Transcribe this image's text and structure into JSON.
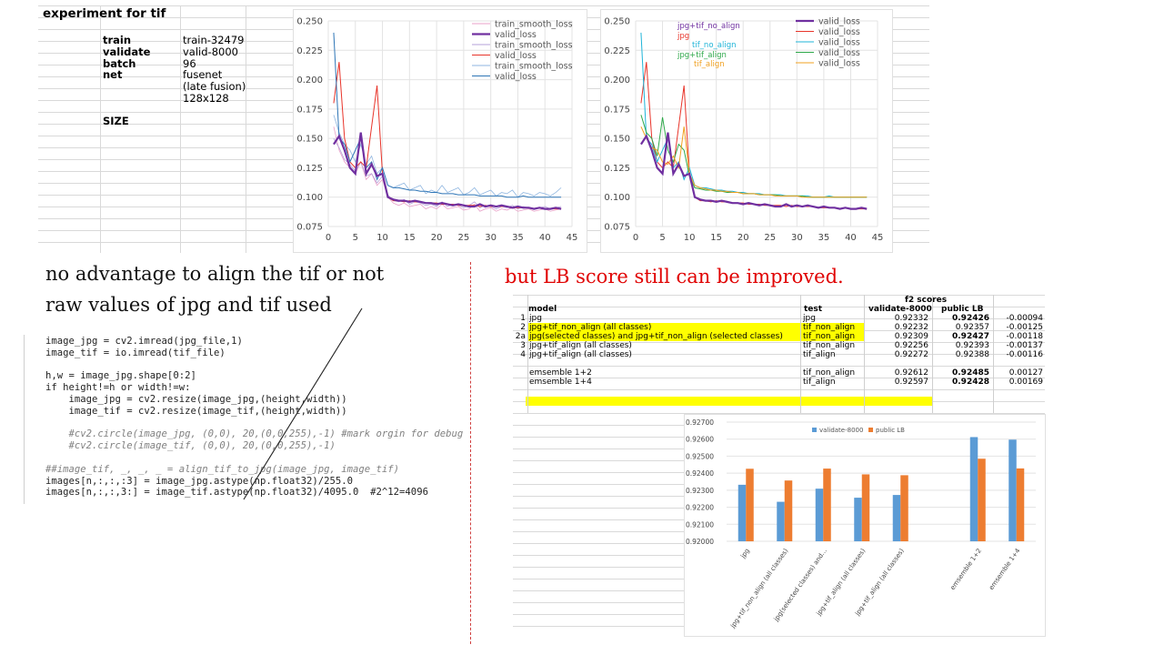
{
  "experiment": {
    "title": "experiment for tif",
    "rows": [
      {
        "label": "train",
        "value": "train-32479"
      },
      {
        "label": "validate",
        "value": "valid-8000"
      },
      {
        "label": "batch",
        "value": "96"
      },
      {
        "label": "net",
        "value": "fusenet"
      },
      {
        "label": "",
        "value": "(late fusion)"
      },
      {
        "label": "",
        "value": "128x128"
      }
    ],
    "size_label": "SIZE"
  },
  "headings": {
    "left1": "no advantage to align the tif or not",
    "left2": "raw values of jpg and tif used",
    "right": "but LB score still can be improved."
  },
  "code": [
    "image_jpg = cv2.imread(jpg_file,1)",
    "image_tif = io.imread(tif_file)",
    "",
    "h,w = image_jpg.shape[0:2]",
    "if height!=h or width!=w:",
    "    image_jpg = cv2.resize(image_jpg,(height,width))",
    "    image_tif = cv2.resize(image_tif,(height,width))",
    "",
    "    #cv2.circle(image_jpg, (0,0), 20,(0,0,255),-1) #mark orgin for debug",
    "    #cv2.circle(image_tif, (0,0), 20,(0,0,255),-1)",
    "",
    "##image_tif, _, _, _ = align_tif_to_jpg(image_jpg, image_tif)",
    "images[n,:,:,:3] = image_jpg.astype(np.float32)/255.0",
    "images[n,:,:,3:] = image_tif.astype(np.float32)/4095.0  #2^12=4096"
  ],
  "scores": {
    "group_header": "f2 scores",
    "columns": [
      "model",
      "test",
      "validate-8000",
      "public LB"
    ],
    "rows": [
      {
        "id": "1",
        "model": "jpg",
        "test": "jpg",
        "validate": "0.92332",
        "lb": "0.92426",
        "diff": "-0.00094",
        "highlight": false,
        "lb_bold": true
      },
      {
        "id": "2",
        "model": "jpg+tif_non_align (all classes)",
        "test": "tif_non_align",
        "validate": "0.92232",
        "lb": "0.92357",
        "diff": "-0.00125",
        "highlight": true,
        "lb_bold": false
      },
      {
        "id": "2a",
        "model": "jpg(selected classes) and jpg+tif_non_align (selected classes)",
        "test": "tif_non_align",
        "validate": "0.92309",
        "lb": "0.92427",
        "diff": "-0.00118",
        "highlight": true,
        "lb_bold": true
      },
      {
        "id": "3",
        "model": "jpg+tif_align (all classes)",
        "test": "tif_non_align",
        "validate": "0.92256",
        "lb": "0.92393",
        "diff": "-0.00137",
        "highlight": false,
        "lb_bold": false
      },
      {
        "id": "4",
        "model": "jpg+tif_align (all classes)",
        "test": "tif_align",
        "validate": "0.92272",
        "lb": "0.92388",
        "diff": "-0.00116",
        "highlight": false,
        "lb_bold": false
      },
      {
        "id": "",
        "model": "",
        "test": "",
        "validate": "",
        "lb": "",
        "diff": "",
        "highlight": false,
        "lb_bold": false
      },
      {
        "id": "",
        "model": "emsemble 1+2",
        "test": "tif_non_align",
        "validate": "0.92612",
        "lb": "0.92485",
        "diff": "0.00127",
        "highlight": false,
        "lb_bold": true
      },
      {
        "id": "",
        "model": "emsemble 1+4",
        "test": "tif_align",
        "validate": "0.92597",
        "lb": "0.92428",
        "diff": "0.00169",
        "highlight": false,
        "lb_bold": true
      }
    ]
  },
  "colors": {
    "purple": "#7030a0",
    "red": "#e8342a",
    "blue": "#2e75b6",
    "pink": "#e8a0c8",
    "lavender": "#b4a0d8",
    "lightblue": "#8fb6e0",
    "cyan": "#1fb4d8",
    "green": "#2ea84a",
    "orange": "#f0a020",
    "barblue": "#5b9bd5",
    "barorange": "#ed7d31"
  },
  "chart_data": [
    {
      "type": "line",
      "title": "",
      "xlim": [
        0,
        45
      ],
      "ylim": [
        0.075,
        0.25
      ],
      "xticks": [
        "0",
        "5",
        "10",
        "15",
        "20",
        "25",
        "30",
        "35",
        "40",
        "45"
      ],
      "yticks": [
        "0.075",
        "0.100",
        "0.125",
        "0.150",
        "0.175",
        "0.200",
        "0.225",
        "0.250"
      ],
      "legend": [
        "train_smooth_loss",
        "valid_loss",
        "train_smooth_loss",
        "valid_loss",
        "train_smooth_loss",
        "valid_loss"
      ],
      "legend_position": "top-right",
      "x": [
        1,
        2,
        3,
        4,
        5,
        6,
        7,
        8,
        9,
        10,
        11,
        12,
        13,
        14,
        15,
        16,
        17,
        18,
        19,
        20,
        21,
        22,
        23,
        24,
        25,
        26,
        27,
        28,
        29,
        30,
        31,
        32,
        33,
        34,
        35,
        36,
        37,
        38,
        39,
        40,
        41,
        42,
        43
      ],
      "series": [
        {
          "name": "valid_loss",
          "color": "purple",
          "width": 2.2,
          "values": [
            0.145,
            0.152,
            0.14,
            0.125,
            0.12,
            0.155,
            0.12,
            0.128,
            0.118,
            0.12,
            0.1,
            0.098,
            0.097,
            0.097,
            0.096,
            0.097,
            0.096,
            0.095,
            0.095,
            0.094,
            0.095,
            0.094,
            0.093,
            0.094,
            0.093,
            0.092,
            0.092,
            0.094,
            0.092,
            0.093,
            0.092,
            0.093,
            0.092,
            0.091,
            0.092,
            0.091,
            0.091,
            0.09,
            0.091,
            0.09,
            0.09,
            0.091,
            0.09
          ]
        },
        {
          "name": "valid_loss",
          "color": "red",
          "width": 1,
          "values": [
            0.18,
            0.215,
            0.15,
            0.13,
            0.125,
            0.13,
            0.125,
            0.16,
            0.195,
            0.12,
            0.1,
            0.097,
            0.097,
            0.096,
            0.097,
            0.096,
            0.096,
            0.095,
            0.095,
            0.095,
            0.094,
            0.094,
            0.094,
            0.093,
            0.093,
            0.093,
            0.093,
            0.092,
            0.093,
            0.092,
            0.092,
            0.092,
            0.092,
            0.091,
            0.091,
            0.091,
            0.091,
            0.09,
            0.091,
            0.09,
            0.09,
            0.09,
            0.09
          ]
        },
        {
          "name": "valid_loss",
          "color": "blue",
          "width": 1,
          "values": [
            0.24,
            0.15,
            0.145,
            0.13,
            0.14,
            0.15,
            0.125,
            0.13,
            0.115,
            0.125,
            0.11,
            0.108,
            0.108,
            0.107,
            0.106,
            0.106,
            0.105,
            0.105,
            0.104,
            0.104,
            0.103,
            0.103,
            0.103,
            0.102,
            0.102,
            0.102,
            0.102,
            0.101,
            0.101,
            0.101,
            0.101,
            0.101,
            0.1,
            0.1,
            0.1,
            0.101,
            0.1,
            0.1,
            0.1,
            0.1,
            0.1,
            0.1,
            0.1
          ]
        },
        {
          "name": "train_smooth_loss",
          "color": "pink",
          "width": 0.8,
          "values": [
            0.16,
            0.14,
            0.13,
            0.125,
            0.12,
            0.13,
            0.115,
            0.12,
            0.11,
            0.115,
            0.1,
            0.095,
            0.093,
            0.095,
            0.092,
            0.093,
            0.094,
            0.09,
            0.092,
            0.09,
            0.094,
            0.09,
            0.091,
            0.092,
            0.089,
            0.09,
            0.094,
            0.088,
            0.09,
            0.091,
            0.088,
            0.09,
            0.089,
            0.091,
            0.088,
            0.089,
            0.09,
            0.088,
            0.089,
            0.09,
            0.088,
            0.089,
            0.09
          ]
        },
        {
          "name": "train_smooth_loss",
          "color": "lavender",
          "width": 0.8,
          "values": [
            0.15,
            0.142,
            0.132,
            0.128,
            0.122,
            0.13,
            0.118,
            0.12,
            0.112,
            0.118,
            0.102,
            0.097,
            0.096,
            0.098,
            0.094,
            0.096,
            0.095,
            0.093,
            0.094,
            0.092,
            0.096,
            0.092,
            0.094,
            0.093,
            0.091,
            0.093,
            0.096,
            0.091,
            0.093,
            0.092,
            0.09,
            0.092,
            0.091,
            0.093,
            0.09,
            0.092,
            0.091,
            0.09,
            0.091,
            0.092,
            0.09,
            0.091,
            0.092
          ]
        },
        {
          "name": "train_smooth_loss",
          "color": "lightblue",
          "width": 0.8,
          "values": [
            0.17,
            0.155,
            0.145,
            0.14,
            0.13,
            0.145,
            0.128,
            0.135,
            0.12,
            0.125,
            0.11,
            0.108,
            0.11,
            0.112,
            0.106,
            0.108,
            0.11,
            0.103,
            0.106,
            0.104,
            0.11,
            0.104,
            0.106,
            0.108,
            0.102,
            0.104,
            0.108,
            0.102,
            0.104,
            0.106,
            0.101,
            0.104,
            0.103,
            0.106,
            0.1,
            0.104,
            0.103,
            0.101,
            0.104,
            0.103,
            0.101,
            0.104,
            0.108
          ]
        }
      ]
    },
    {
      "type": "line",
      "title": "",
      "xlim": [
        0,
        45
      ],
      "ylim": [
        0.075,
        0.25
      ],
      "xticks": [
        "0",
        "5",
        "10",
        "15",
        "20",
        "25",
        "30",
        "35",
        "40",
        "45"
      ],
      "yticks": [
        "0.075",
        "0.100",
        "0.125",
        "0.150",
        "0.175",
        "0.200",
        "0.225",
        "0.250"
      ],
      "legend": [
        "valid_loss",
        "valid_loss",
        "valid_loss",
        "valid_loss",
        "valid_loss"
      ],
      "legend_position": "top-right",
      "annotations": [
        {
          "text": "jpg+tif_no_align",
          "color": "purple"
        },
        {
          "text": "jpg",
          "color": "red"
        },
        {
          "text": "tif_no_align",
          "color": "cyan"
        },
        {
          "text": "jpg+tif_align",
          "color": "green"
        },
        {
          "text": "tif_align",
          "color": "orange"
        }
      ],
      "x": [
        1,
        2,
        3,
        4,
        5,
        6,
        7,
        8,
        9,
        10,
        11,
        12,
        13,
        14,
        15,
        16,
        17,
        18,
        19,
        20,
        21,
        22,
        23,
        24,
        25,
        26,
        27,
        28,
        29,
        30,
        31,
        32,
        33,
        34,
        35,
        36,
        37,
        38,
        39,
        40,
        41,
        42,
        43
      ],
      "series": [
        {
          "name": "valid_loss",
          "color": "purple",
          "width": 2.2,
          "values": [
            0.145,
            0.152,
            0.14,
            0.125,
            0.12,
            0.155,
            0.12,
            0.128,
            0.118,
            0.12,
            0.1,
            0.098,
            0.097,
            0.097,
            0.096,
            0.097,
            0.096,
            0.095,
            0.095,
            0.094,
            0.095,
            0.094,
            0.093,
            0.094,
            0.093,
            0.092,
            0.092,
            0.094,
            0.092,
            0.093,
            0.092,
            0.093,
            0.092,
            0.091,
            0.092,
            0.091,
            0.091,
            0.09,
            0.091,
            0.09,
            0.09,
            0.091,
            0.09
          ]
        },
        {
          "name": "valid_loss",
          "color": "red",
          "width": 1,
          "values": [
            0.18,
            0.215,
            0.15,
            0.13,
            0.125,
            0.13,
            0.125,
            0.16,
            0.195,
            0.12,
            0.1,
            0.097,
            0.097,
            0.096,
            0.097,
            0.096,
            0.096,
            0.095,
            0.095,
            0.095,
            0.094,
            0.094,
            0.094,
            0.093,
            0.093,
            0.093,
            0.093,
            0.092,
            0.093,
            0.092,
            0.092,
            0.092,
            0.092,
            0.091,
            0.091,
            0.091,
            0.091,
            0.09,
            0.091,
            0.09,
            0.09,
            0.09,
            0.09
          ]
        },
        {
          "name": "valid_loss",
          "color": "cyan",
          "width": 1,
          "values": [
            0.24,
            0.15,
            0.145,
            0.13,
            0.14,
            0.15,
            0.125,
            0.13,
            0.115,
            0.125,
            0.11,
            0.108,
            0.108,
            0.107,
            0.106,
            0.106,
            0.105,
            0.105,
            0.104,
            0.104,
            0.103,
            0.103,
            0.103,
            0.102,
            0.102,
            0.102,
            0.102,
            0.101,
            0.101,
            0.101,
            0.101,
            0.101,
            0.1,
            0.1,
            0.1,
            0.101,
            0.1,
            0.1,
            0.1,
            0.1,
            0.1,
            0.1,
            0.1
          ]
        },
        {
          "name": "valid_loss",
          "color": "green",
          "width": 1,
          "values": [
            0.17,
            0.155,
            0.15,
            0.135,
            0.168,
            0.14,
            0.13,
            0.145,
            0.14,
            0.118,
            0.108,
            0.107,
            0.106,
            0.106,
            0.105,
            0.105,
            0.104,
            0.104,
            0.104,
            0.103,
            0.103,
            0.103,
            0.102,
            0.102,
            0.102,
            0.102,
            0.101,
            0.101,
            0.101,
            0.101,
            0.101,
            0.1,
            0.1,
            0.1,
            0.1,
            0.1,
            0.1,
            0.1,
            0.1,
            0.1,
            0.1,
            0.1,
            0.1
          ]
        },
        {
          "name": "valid_loss",
          "color": "orange",
          "width": 1,
          "values": [
            0.16,
            0.15,
            0.142,
            0.14,
            0.13,
            0.128,
            0.135,
            0.125,
            0.16,
            0.12,
            0.11,
            0.108,
            0.107,
            0.106,
            0.106,
            0.105,
            0.105,
            0.104,
            0.104,
            0.103,
            0.103,
            0.103,
            0.102,
            0.102,
            0.102,
            0.101,
            0.101,
            0.101,
            0.101,
            0.101,
            0.1,
            0.1,
            0.1,
            0.1,
            0.1,
            0.1,
            0.1,
            0.1,
            0.1,
            0.1,
            0.1,
            0.1,
            0.1
          ]
        }
      ]
    },
    {
      "type": "bar",
      "title": "",
      "categories": [
        "jpg",
        "jpg+tif_non_align (all classes)",
        "jpg(selected classes) and...",
        "jpg+tif_align (all classes)",
        "jpg+tif_align (all classes)",
        "",
        "emsemble 1+2",
        "emsemble 1+4"
      ],
      "series": [
        {
          "name": "validate-8000",
          "color": "barblue",
          "values": [
            0.92332,
            0.92232,
            0.92309,
            0.92256,
            0.92272,
            null,
            0.92612,
            0.92597
          ]
        },
        {
          "name": "public LB",
          "color": "barorange",
          "values": [
            0.92426,
            0.92357,
            0.92427,
            0.92393,
            0.92388,
            null,
            0.92485,
            0.92428
          ]
        }
      ],
      "ylim": [
        0.92,
        0.927
      ],
      "yticks": [
        "0.92700",
        "0.92600",
        "0.92500",
        "0.92400",
        "0.92300",
        "0.92200",
        "0.92100",
        "0.92000"
      ],
      "grid": true,
      "legend_position": "top"
    }
  ]
}
